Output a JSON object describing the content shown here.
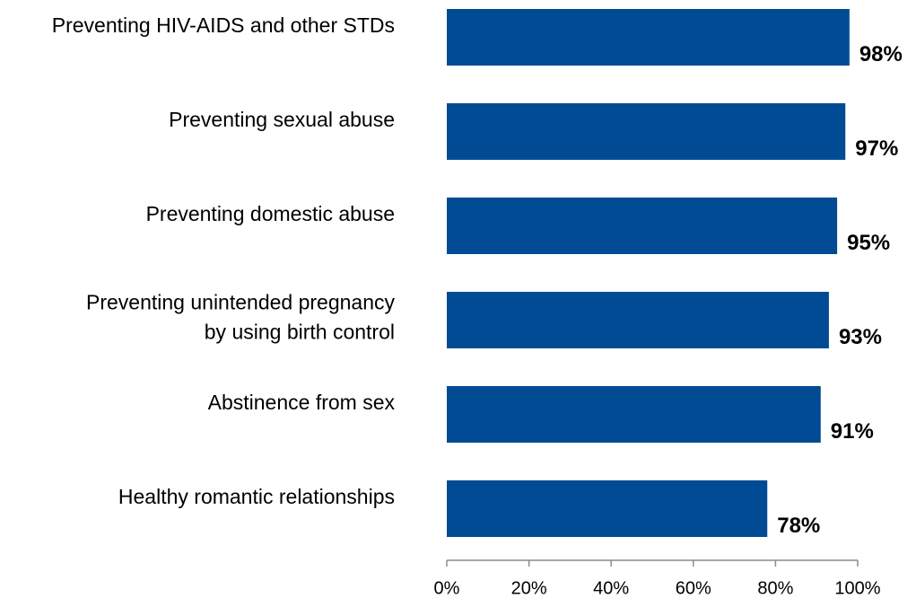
{
  "chart_data": {
    "type": "bar",
    "orientation": "horizontal",
    "title": "",
    "xlabel": "",
    "ylabel": "",
    "xlim": [
      0,
      100
    ],
    "x_ticks": [
      "0%",
      "20%",
      "40%",
      "60%",
      "80%",
      "100%"
    ],
    "grid": false,
    "legend": "none",
    "bar_color": "#004b93",
    "categories": [
      [
        "Preventing HIV-AIDS and other STDs"
      ],
      [
        "Preventing sexual abuse"
      ],
      [
        "Preventing domestic abuse"
      ],
      [
        "Preventing unintended pregnancy",
        "by using birth control"
      ],
      [
        "Abstinence from sex"
      ],
      [
        "Healthy romantic relationships"
      ]
    ],
    "values": [
      98,
      97,
      95,
      93,
      91,
      78
    ],
    "data_labels": [
      "98%",
      "97%",
      "95%",
      "93%",
      "91%",
      "78%"
    ]
  }
}
